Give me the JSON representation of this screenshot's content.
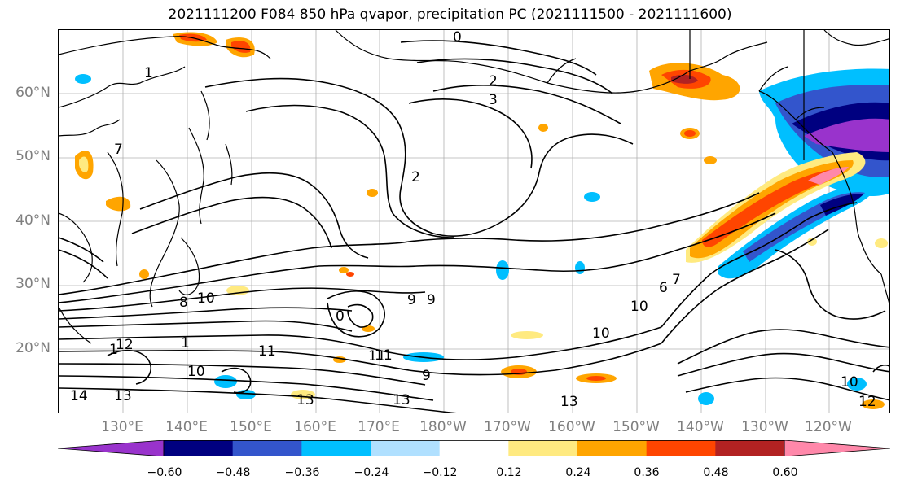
{
  "title": "2021111200 F084 850 hPa qvapor, precipitation PC (2021111500 - 2021111600)",
  "lat_labels": [
    "60°N",
    "50°N",
    "40°N",
    "30°N",
    "20°N"
  ],
  "lon_labels": [
    "130°E",
    "140°E",
    "150°E",
    "160°E",
    "170°E",
    "180°W",
    "170°W",
    "160°W",
    "150°W",
    "140°W",
    "130°W",
    "120°W"
  ],
  "colorbar": {
    "colors": [
      "#9933cc",
      "#000080",
      "#3355cc",
      "#00bfff",
      "#b0e0ff",
      "#ffffff",
      "#ffea80",
      "#ffa500",
      "#ff4500",
      "#b22222",
      "#ff88aa"
    ],
    "tick_labels": [
      "−0.60",
      "−0.48",
      "−0.36",
      "−0.24",
      "−0.12",
      "0.12",
      "0.24",
      "0.36",
      "0.48",
      "0.60"
    ]
  },
  "contour_labels": [
    "0",
    "1",
    "2",
    "2",
    "3",
    "7",
    "8",
    "9",
    "9",
    "9",
    "10",
    "10",
    "10",
    "10",
    "11",
    "11",
    "13",
    "13",
    "13",
    "13",
    "14",
    "6",
    "7",
    "0",
    "1",
    "1",
    "12",
    "11",
    "10",
    "12"
  ],
  "colors": {
    "land": "#000000",
    "contour": "#000000",
    "grid": "#b0b0b0",
    "axis_label": "#7f7f7f"
  }
}
